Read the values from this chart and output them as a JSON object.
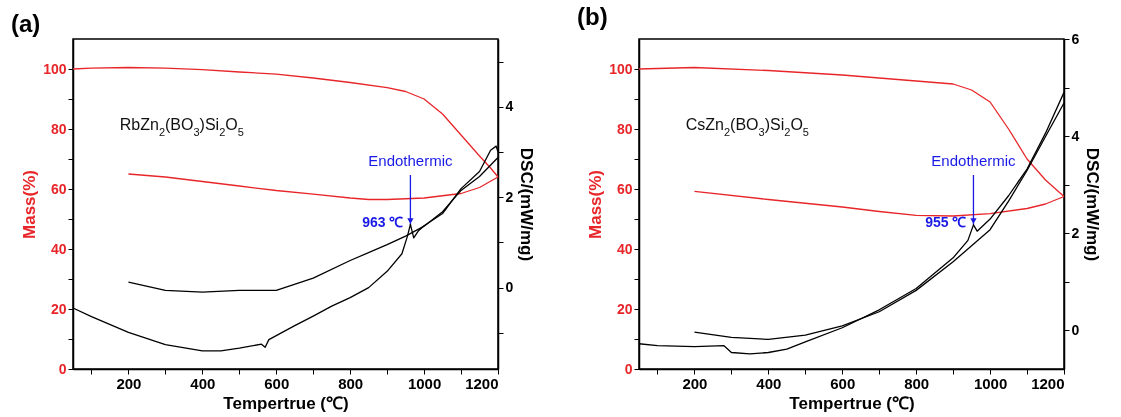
{
  "chart_data": [
    {
      "type": "line",
      "title": "(a)",
      "xlabel": "Tempertrue (℃)",
      "ylabel": "Mass(%)",
      "y2label": "DSC/(mW/mg)",
      "xlim": [
        50,
        1200
      ],
      "ylim": [
        0,
        110
      ],
      "y2lim": [
        -1.8,
        5.5
      ],
      "xticks": [
        {
          "value": 100,
          "label": null
        },
        200,
        {
          "value": 300,
          "label": null
        },
        400,
        {
          "value": 500,
          "label": null
        },
        600,
        {
          "value": 700,
          "label": null
        },
        800,
        {
          "value": 900,
          "label": null
        },
        1000,
        {
          "value": 1100,
          "label": null
        },
        1200
      ],
      "yticks": [
        0,
        {
          "value": 10,
          "label": null
        },
        20,
        {
          "value": 30,
          "label": null
        },
        40,
        {
          "value": 50,
          "label": null
        },
        60,
        {
          "value": 70,
          "label": null
        },
        80,
        {
          "value": 90,
          "label": null
        },
        100
      ],
      "y2ticks": [
        {
          "value": -1,
          "label": null
        },
        0,
        {
          "value": 1,
          "label": null
        },
        2,
        {
          "value": 3,
          "label": null
        },
        4,
        {
          "value": 5,
          "label": null
        }
      ],
      "grid": false,
      "annotations": [
        "RbZn$_{2}$(BO$_{3}$)Si$_{2}$O$_{5}$",
        {
          "text": "Endothermic",
          "x": 963,
          "y": 48
        },
        "963 ℃"
      ],
      "series": [
        {
          "color": "#e8262a",
          "x": [
            50,
            100,
            200,
            300,
            400,
            500,
            600,
            700,
            800,
            900,
            950,
            1000,
            1050,
            1100,
            1150,
            1180,
            1200
          ],
          "values": [
            100,
            100.3,
            100.5,
            100.3,
            99.8,
            99,
            98.3,
            97,
            95.5,
            93.8,
            92.5,
            90,
            85,
            78,
            71,
            67,
            64
          ]
        },
        {
          "color": "#e8262a",
          "x": [
            1200,
            1150,
            1100,
            1000,
            900,
            850,
            800,
            700,
            600,
            500,
            400,
            300,
            200
          ],
          "values": [
            64,
            60.5,
            58.5,
            57,
            56.5,
            56.5,
            57,
            58.3,
            59.5,
            61,
            62.5,
            64,
            65
          ]
        },
        {
          "color": "#000000",
          "axis": "y2",
          "x": [
            50,
            100,
            200,
            300,
            400,
            450,
            500,
            560,
            570,
            580,
            650,
            700,
            750,
            800,
            850,
            900,
            940,
            955,
            963,
            972,
            985,
            1000,
            1050,
            1100,
            1150,
            1180,
            1195,
            1200
          ],
          "values": [
            -0.45,
            -0.64,
            -0.99,
            -1.26,
            -1.4,
            -1.4,
            -1.34,
            -1.25,
            -1.32,
            -1.15,
            -0.84,
            -0.63,
            -0.41,
            -0.22,
            0,
            0.36,
            0.75,
            1.14,
            1.4,
            1.1,
            1.26,
            1.37,
            1.64,
            2.19,
            2.57,
            3.04,
            3.13,
            3
          ]
        },
        {
          "color": "#000000",
          "axis": "y2",
          "x": [
            1200,
            1150,
            1100,
            1050,
            1000,
            950,
            900,
            800,
            700,
            600,
            500,
            400,
            300,
            200
          ],
          "values": [
            2.88,
            2.46,
            2.15,
            1.68,
            1.36,
            1.14,
            0.95,
            0.6,
            0.21,
            -0.06,
            -0.06,
            -0.1,
            -0.06,
            0.12
          ]
        }
      ]
    },
    {
      "type": "line",
      "title": "(b)",
      "xlabel": "Tempertrue (℃)",
      "ylabel": "Mass(%)",
      "y2label": "DSC/(mW/mg)",
      "xlim": [
        50,
        1200
      ],
      "ylim": [
        0,
        110
      ],
      "y2lim": [
        -0.8,
        6
      ],
      "xticks": [
        {
          "value": 100,
          "label": null
        },
        200,
        {
          "value": 300,
          "label": null
        },
        400,
        {
          "value": 500,
          "label": null
        },
        600,
        {
          "value": 700,
          "label": null
        },
        800,
        {
          "value": 900,
          "label": null
        },
        1000,
        {
          "value": 1100,
          "label": null
        },
        1200
      ],
      "yticks": [
        0,
        {
          "value": 10,
          "label": null
        },
        20,
        {
          "value": 30,
          "label": null
        },
        40,
        {
          "value": 50,
          "label": null
        },
        60,
        {
          "value": 70,
          "label": null
        },
        80,
        {
          "value": 90,
          "label": null
        },
        100
      ],
      "y2ticks": [
        0,
        {
          "value": 1,
          "label": null
        },
        2,
        {
          "value": 3,
          "label": null
        },
        4,
        {
          "value": 5,
          "label": null
        },
        6
      ],
      "grid": false,
      "annotations": [
        "CsZn$_{2}$(BO$_{3}$)Si$_{2}$O$_{5}$",
        {
          "text": "Endothermic",
          "x": 955,
          "y": 48
        },
        "955 ℃"
      ],
      "series": [
        {
          "color": "#e8262a",
          "x": [
            50,
            200,
            400,
            600,
            800,
            900,
            950,
            1000,
            1050,
            1100,
            1150,
            1200
          ],
          "values": [
            100,
            100.5,
            99.5,
            98,
            96,
            95,
            93,
            89,
            80,
            70,
            63,
            57.5
          ]
        },
        {
          "color": "#e8262a",
          "x": [
            1200,
            1150,
            1100,
            1000,
            900,
            800,
            700,
            600,
            400,
            200
          ],
          "values": [
            57.5,
            55,
            53.5,
            51.8,
            51,
            51.2,
            52.5,
            54,
            56.5,
            59.2
          ]
        },
        {
          "color": "#000000",
          "axis": "y2",
          "x": [
            50,
            100,
            200,
            280,
            300,
            350,
            400,
            450,
            500,
            600,
            700,
            800,
            900,
            940,
            955,
            965,
            1000,
            1050,
            1100,
            1150,
            1200
          ],
          "values": [
            -0.28,
            -0.32,
            -0.34,
            -0.32,
            -0.46,
            -0.49,
            -0.46,
            -0.39,
            -0.24,
            0.05,
            0.42,
            0.86,
            1.49,
            1.85,
            2.17,
            2.04,
            2.29,
            2.77,
            3.32,
            4.06,
            4.9
          ]
        },
        {
          "color": "#000000",
          "axis": "y2",
          "x": [
            1200,
            1150,
            1100,
            1050,
            1000,
            950,
            900,
            800,
            700,
            600,
            500,
            400,
            300,
            200
          ],
          "values": [
            4.68,
            3.99,
            3.29,
            2.66,
            2.07,
            1.74,
            1.41,
            0.82,
            0.38,
            0.09,
            -0.1,
            -0.19,
            -0.15,
            -0.04
          ]
        }
      ]
    }
  ]
}
